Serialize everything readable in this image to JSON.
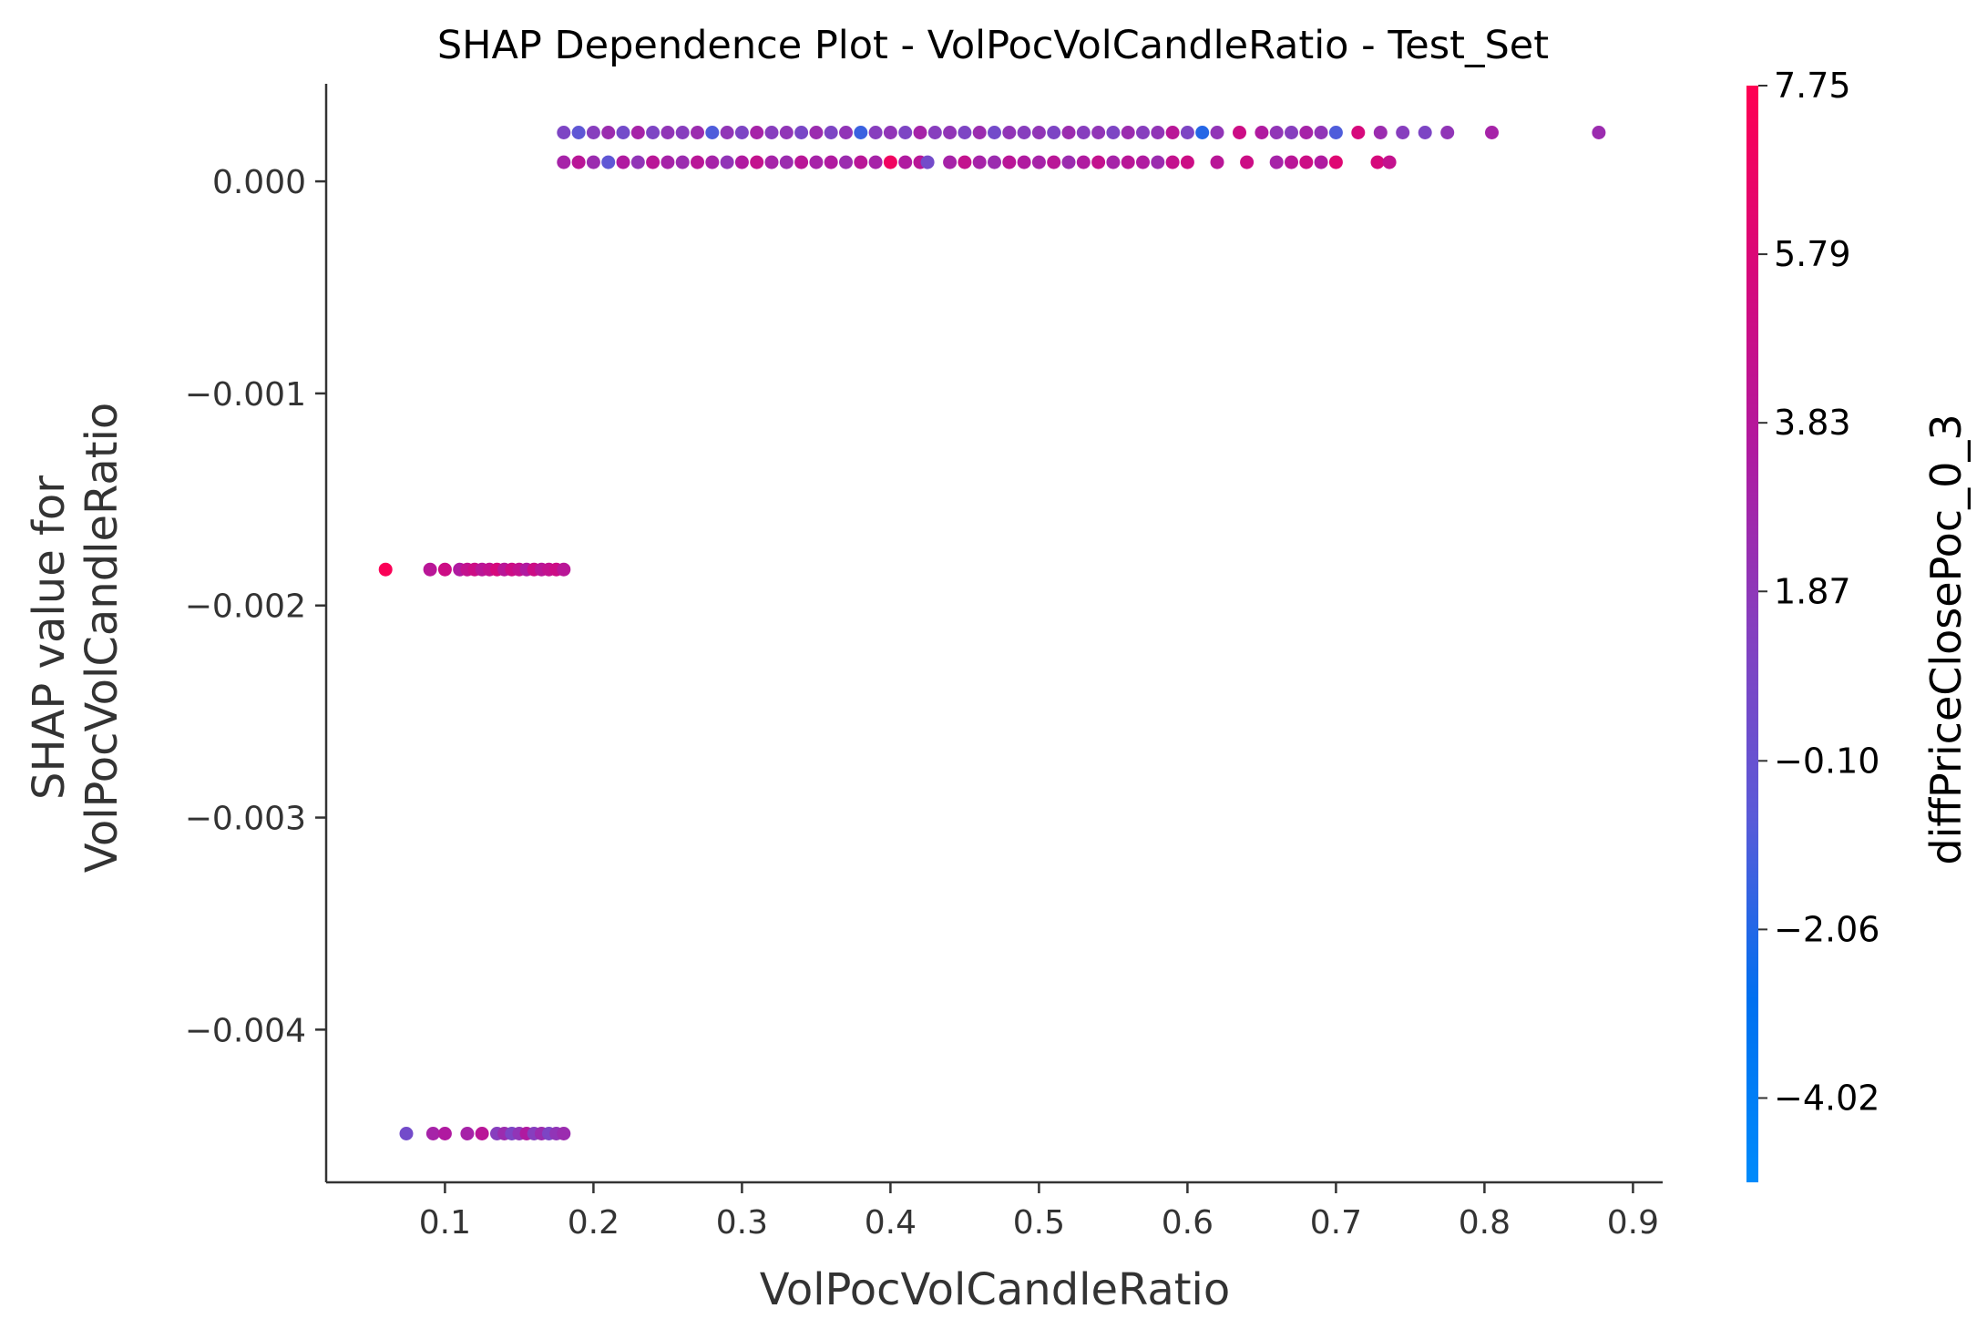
{
  "chart_data": {
    "type": "scatter",
    "title": "SHAP Dependence Plot - VolPocVolCandleRatio - Test_Set",
    "xlabel": "VolPocVolCandleRatio",
    "ylabel_line1": "SHAP value for",
    "ylabel_line2": "VolPocVolCandleRatio",
    "xlim": [
      0.02,
      0.92
    ],
    "ylim": [
      -0.00472,
      0.00046
    ],
    "x_ticks": [
      0.1,
      0.2,
      0.3,
      0.4,
      0.5,
      0.6,
      0.7,
      0.8,
      0.9
    ],
    "x_tick_labels": [
      "0.1",
      "0.2",
      "0.3",
      "0.4",
      "0.5",
      "0.6",
      "0.7",
      "0.8",
      "0.9"
    ],
    "y_ticks": [
      0.0,
      -0.001,
      -0.002,
      -0.003,
      -0.004
    ],
    "y_tick_labels": [
      "0.000",
      "−0.001",
      "−0.002",
      "−0.003",
      "−0.004"
    ],
    "grid": false,
    "colorbar": {
      "label": "diffPriceClosePoc_0_3",
      "min": -5.0,
      "max": 7.75,
      "tick_values": [
        7.75,
        5.79,
        3.83,
        1.87,
        -0.1,
        -2.06,
        -4.02
      ],
      "tick_labels": [
        "7.75",
        "5.79",
        "3.83",
        "1.87",
        "−0.10",
        "−2.06",
        "−4.02"
      ],
      "colors": [
        "#008bfb",
        "#0070f0",
        "#5a5ad8",
        "#8440c0",
        "#b01aa0",
        "#d8087a",
        "#ff0052"
      ]
    },
    "series": [
      {
        "y": 0.00023,
        "points": [
          [
            0.18,
            1.0
          ],
          [
            0.19,
            -0.5
          ],
          [
            0.2,
            1.5
          ],
          [
            0.21,
            2.5
          ],
          [
            0.22,
            0.5
          ],
          [
            0.23,
            3.0
          ],
          [
            0.24,
            1.0
          ],
          [
            0.25,
            2.0
          ],
          [
            0.26,
            1.5
          ],
          [
            0.27,
            2.5
          ],
          [
            0.28,
            -1.0
          ],
          [
            0.29,
            2.0
          ],
          [
            0.3,
            1.0
          ],
          [
            0.31,
            3.0
          ],
          [
            0.32,
            1.5
          ],
          [
            0.33,
            2.0
          ],
          [
            0.34,
            0.8
          ],
          [
            0.35,
            2.5
          ],
          [
            0.36,
            1.0
          ],
          [
            0.37,
            2.0
          ],
          [
            0.38,
            -1.5
          ],
          [
            0.39,
            1.5
          ],
          [
            0.4,
            2.0
          ],
          [
            0.41,
            1.0
          ],
          [
            0.42,
            3.0
          ],
          [
            0.43,
            1.5
          ],
          [
            0.44,
            2.0
          ],
          [
            0.45,
            1.0
          ],
          [
            0.46,
            2.5
          ],
          [
            0.47,
            0.5
          ],
          [
            0.48,
            2.0
          ],
          [
            0.49,
            1.5
          ],
          [
            0.5,
            2.0
          ],
          [
            0.51,
            1.0
          ],
          [
            0.52,
            2.5
          ],
          [
            0.53,
            1.5
          ],
          [
            0.54,
            2.0
          ],
          [
            0.55,
            1.0
          ],
          [
            0.56,
            2.5
          ],
          [
            0.57,
            1.5
          ],
          [
            0.58,
            2.0
          ],
          [
            0.59,
            4.0
          ],
          [
            0.6,
            1.0
          ],
          [
            0.61,
            -2.0
          ],
          [
            0.62,
            2.0
          ],
          [
            0.635,
            5.0
          ],
          [
            0.65,
            3.5
          ],
          [
            0.66,
            2.0
          ],
          [
            0.67,
            1.5
          ],
          [
            0.68,
            3.0
          ],
          [
            0.69,
            2.0
          ],
          [
            0.7,
            -1.0
          ],
          [
            0.715,
            5.5
          ],
          [
            0.73,
            2.5
          ],
          [
            0.745,
            1.5
          ],
          [
            0.76,
            1.0
          ],
          [
            0.775,
            2.0
          ],
          [
            0.805,
            3.0
          ],
          [
            0.877,
            2.5
          ]
        ]
      },
      {
        "y": 9e-05,
        "points": [
          [
            0.18,
            3.0
          ],
          [
            0.19,
            4.0
          ],
          [
            0.2,
            2.5
          ],
          [
            0.21,
            -0.5
          ],
          [
            0.22,
            3.5
          ],
          [
            0.23,
            2.0
          ],
          [
            0.24,
            4.0
          ],
          [
            0.25,
            3.0
          ],
          [
            0.26,
            2.5
          ],
          [
            0.27,
            4.0
          ],
          [
            0.28,
            3.0
          ],
          [
            0.29,
            2.0
          ],
          [
            0.3,
            3.5
          ],
          [
            0.31,
            4.5
          ],
          [
            0.32,
            3.0
          ],
          [
            0.33,
            2.5
          ],
          [
            0.34,
            4.0
          ],
          [
            0.35,
            3.0
          ],
          [
            0.36,
            3.5
          ],
          [
            0.37,
            2.5
          ],
          [
            0.38,
            4.0
          ],
          [
            0.39,
            3.0
          ],
          [
            0.4,
            7.0
          ],
          [
            0.41,
            3.5
          ],
          [
            0.42,
            4.0
          ],
          [
            0.425,
            0.5
          ],
          [
            0.44,
            3.0
          ],
          [
            0.45,
            4.5
          ],
          [
            0.46,
            3.0
          ],
          [
            0.47,
            2.5
          ],
          [
            0.48,
            4.0
          ],
          [
            0.49,
            3.5
          ],
          [
            0.5,
            3.0
          ],
          [
            0.51,
            4.0
          ],
          [
            0.52,
            2.5
          ],
          [
            0.53,
            3.5
          ],
          [
            0.54,
            4.5
          ],
          [
            0.55,
            3.0
          ],
          [
            0.56,
            4.0
          ],
          [
            0.57,
            3.5
          ],
          [
            0.58,
            2.5
          ],
          [
            0.59,
            4.5
          ],
          [
            0.6,
            5.0
          ],
          [
            0.62,
            4.0
          ],
          [
            0.64,
            5.0
          ],
          [
            0.66,
            3.0
          ],
          [
            0.67,
            4.0
          ],
          [
            0.68,
            5.0
          ],
          [
            0.69,
            3.5
          ],
          [
            0.7,
            6.0
          ],
          [
            0.728,
            5.5
          ],
          [
            0.736,
            4.5
          ]
        ]
      },
      {
        "y": -0.00183,
        "points": [
          [
            0.06,
            7.5
          ],
          [
            0.09,
            4.0
          ],
          [
            0.1,
            5.0
          ],
          [
            0.11,
            3.5
          ],
          [
            0.115,
            4.5
          ],
          [
            0.12,
            5.0
          ],
          [
            0.125,
            4.0
          ],
          [
            0.13,
            4.5
          ],
          [
            0.135,
            5.5
          ],
          [
            0.14,
            4.0
          ],
          [
            0.145,
            5.0
          ],
          [
            0.15,
            4.5
          ],
          [
            0.155,
            3.5
          ],
          [
            0.16,
            5.0
          ],
          [
            0.165,
            4.0
          ],
          [
            0.17,
            4.5
          ],
          [
            0.175,
            5.0
          ],
          [
            0.18,
            4.0
          ]
        ]
      },
      {
        "y": -0.00449,
        "points": [
          [
            0.074,
            0.5
          ],
          [
            0.092,
            3.0
          ],
          [
            0.1,
            3.5
          ],
          [
            0.115,
            3.0
          ],
          [
            0.125,
            4.0
          ],
          [
            0.135,
            1.5
          ],
          [
            0.14,
            2.5
          ],
          [
            0.145,
            1.0
          ],
          [
            0.15,
            2.0
          ],
          [
            0.155,
            3.5
          ],
          [
            0.16,
            1.5
          ],
          [
            0.165,
            2.5
          ],
          [
            0.17,
            1.0
          ],
          [
            0.175,
            2.0
          ],
          [
            0.18,
            2.5
          ]
        ]
      }
    ]
  }
}
